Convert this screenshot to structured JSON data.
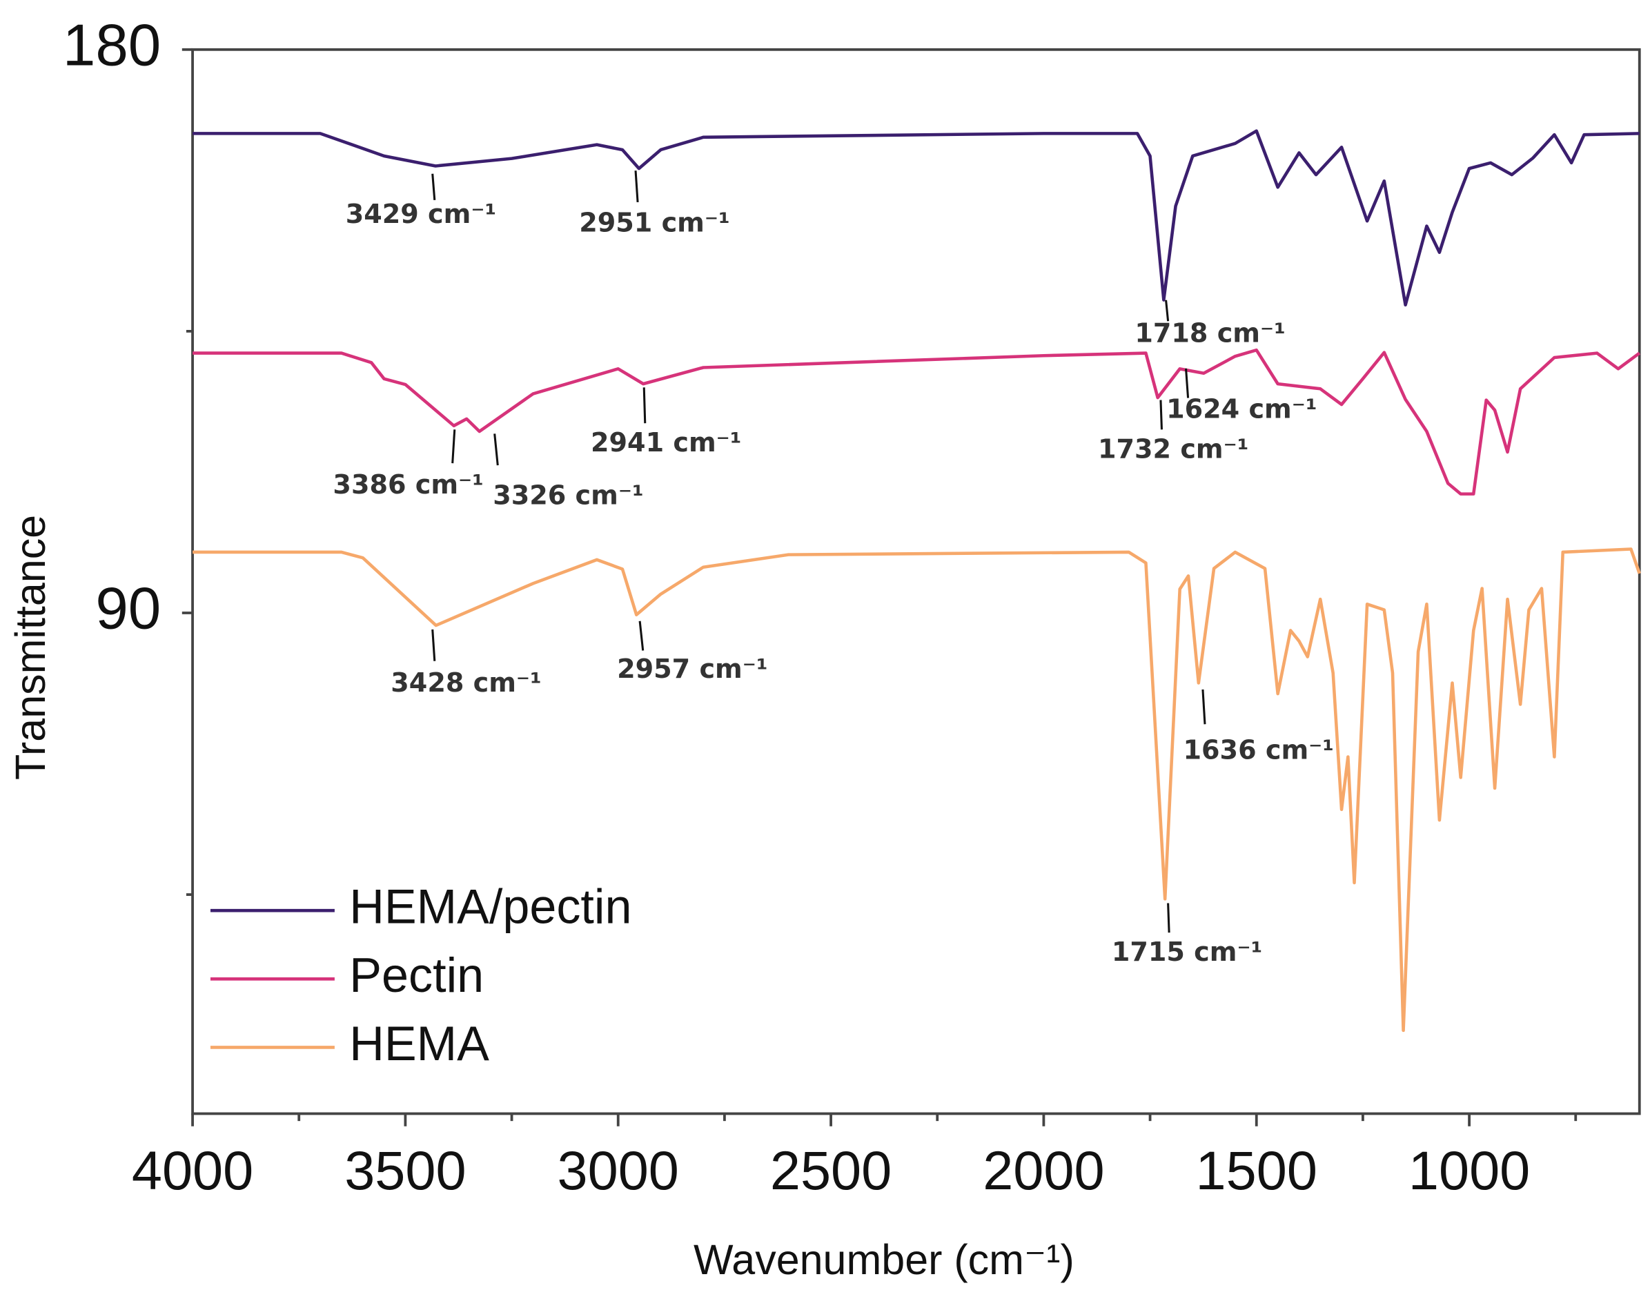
{
  "chart_data": {
    "type": "line",
    "xlabel": "Wavenumber (cm⁻¹)",
    "ylabel": "Transmittance",
    "xlim": [
      4000,
      600
    ],
    "ylim": [
      10,
      180
    ],
    "xticks": [
      4000,
      3500,
      3000,
      2500,
      2000,
      1500,
      1000
    ],
    "xminor_ticks": [
      3750,
      3250,
      2750,
      2250,
      1750,
      1250,
      750
    ],
    "yticks": [
      90,
      180
    ],
    "yminor_ticks": [
      45,
      135
    ],
    "legend": "lower left",
    "series": [
      {
        "name": "HEMA/pectin",
        "color": "#3b1f6e",
        "x": [
          4000,
          3700,
          3550,
          3429,
          3250,
          3050,
          2990,
          2951,
          2900,
          2800,
          2000,
          1780,
          1750,
          1718,
          1690,
          1650,
          1550,
          1500,
          1450,
          1400,
          1360,
          1300,
          1240,
          1200,
          1150,
          1100,
          1070,
          1040,
          1000,
          950,
          900,
          850,
          800,
          760,
          730,
          600
        ],
        "values": [
          166.6,
          166.6,
          163,
          161.4,
          162.6,
          164.8,
          164,
          161,
          164,
          166,
          166.6,
          166.6,
          163,
          140,
          155,
          163,
          165,
          167,
          158,
          163.5,
          160,
          164.4,
          152.6,
          159,
          139.2,
          151.8,
          147.6,
          154,
          161,
          161.9,
          160,
          162.7,
          166.4,
          161.9,
          166.4,
          166.6
        ]
      },
      {
        "name": "Pectin",
        "color": "#d6337a",
        "x": [
          4000,
          3650,
          3580,
          3550,
          3500,
          3386,
          3356,
          3326,
          3200,
          3000,
          2941,
          2800,
          2000,
          1760,
          1732,
          1680,
          1624,
          1550,
          1500,
          1450,
          1350,
          1300,
          1250,
          1200,
          1150,
          1100,
          1050,
          1020,
          990,
          960,
          940,
          910,
          880,
          800,
          700,
          650,
          600
        ],
        "values": [
          131.5,
          131.5,
          130,
          127.4,
          126.5,
          119.9,
          121,
          119,
          125,
          129,
          126.6,
          129.2,
          131.1,
          131.5,
          124.4,
          129,
          128.3,
          131,
          132,
          126.6,
          125.8,
          123.3,
          127.4,
          131.6,
          124.1,
          119,
          110.7,
          109,
          109,
          124,
          122.4,
          115.7,
          125.8,
          130.8,
          131.5,
          129,
          131.5
        ]
      },
      {
        "name": "HEMA",
        "color": "#f6a86a",
        "x": [
          4000,
          3650,
          3600,
          3428,
          3200,
          3050,
          2990,
          2957,
          2900,
          2800,
          2600,
          1800,
          1760,
          1715,
          1680,
          1660,
          1636,
          1600,
          1550,
          1480,
          1450,
          1420,
          1400,
          1380,
          1350,
          1320,
          1300,
          1285,
          1270,
          1240,
          1200,
          1180,
          1155,
          1120,
          1100,
          1070,
          1040,
          1020,
          990,
          970,
          940,
          910,
          880,
          860,
          830,
          800,
          780,
          620,
          600
        ],
        "values": [
          99.7,
          99.7,
          98.8,
          88,
          94.7,
          98.5,
          97,
          89.7,
          93,
          97.3,
          99.3,
          99.7,
          98,
          44.3,
          93.8,
          95.9,
          78.8,
          97.1,
          99.7,
          97.1,
          77.1,
          87.2,
          85.5,
          83,
          92.2,
          80.4,
          58.6,
          67,
          46.9,
          91.4,
          90.5,
          80.4,
          23.3,
          83.8,
          91.4,
          56.9,
          78.8,
          63.7,
          87.2,
          93.9,
          62,
          92.2,
          75.4,
          90.5,
          93.9,
          67,
          99.7,
          100.2,
          96.3
        ]
      }
    ],
    "annotations": [
      "3429 cm⁻¹",
      "2951 cm⁻¹",
      "1718 cm⁻¹",
      "3386 cm⁻¹",
      "3326 cm⁻¹",
      "2941 cm⁻¹",
      "1624 cm⁻¹",
      "1732 cm⁻¹",
      "3428 cm⁻¹",
      "2957 cm⁻¹",
      "1636 cm⁻¹",
      "1715 cm⁻¹"
    ]
  }
}
